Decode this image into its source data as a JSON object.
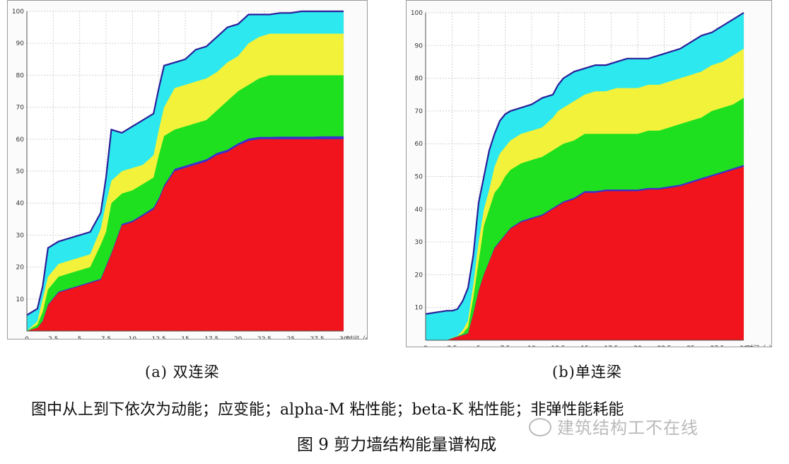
{
  "colors": {
    "kinetic": "#2de8ee",
    "strain": "#f2f23a",
    "alphaM": "#1fe01f",
    "betaK": "#3a2fd0",
    "inelastic": "#f2141c",
    "outline": "#2a1f9a",
    "grid": "#d0d0d0",
    "axis": "#505050"
  },
  "chart_data": [
    {
      "type": "area",
      "stacked": true,
      "caption": "(a)  双连梁",
      "xlabel": "时间（s）",
      "xlim": [
        0,
        30
      ],
      "ylim": [
        0,
        100
      ],
      "xticks": [
        "0",
        "2.5",
        "5",
        "7.5",
        "10",
        "12.5",
        "15",
        "17.5",
        "20",
        "22.5",
        "25",
        "27.5",
        "30"
      ],
      "yticks": [
        "10",
        "20",
        "30",
        "40",
        "50",
        "60",
        "70",
        "80",
        "90",
        "100"
      ],
      "x": [
        0,
        1,
        1.5,
        2,
        3,
        4,
        5,
        6,
        7,
        7.5,
        8,
        9,
        10,
        11,
        12,
        12.5,
        13,
        14,
        15,
        16,
        17,
        18,
        19,
        20,
        21,
        22,
        23,
        24,
        25,
        26,
        27,
        28,
        29,
        30
      ],
      "series_order": [
        "非弹性能耗能",
        "beta-K 粘性能",
        "alpha-M 粘性能",
        "应变能",
        "动能"
      ],
      "cumulative": [
        [
          0,
          1,
          3,
          8,
          12,
          13,
          14,
          15,
          16,
          20,
          24,
          33,
          34,
          36,
          38,
          41,
          45,
          50,
          51,
          52,
          53,
          55,
          56,
          58,
          59.5,
          60,
          60,
          60,
          60,
          60,
          60,
          60,
          60,
          60
        ],
        [
          0,
          1,
          3.2,
          8.3,
          12.3,
          13.3,
          14.3,
          15.3,
          16.3,
          20.4,
          24.4,
          33.5,
          34.5,
          36.5,
          38.6,
          41.6,
          45.6,
          50.7,
          51.7,
          52.7,
          53.7,
          55.7,
          56.7,
          58.7,
          60.2,
          60.7,
          60.7,
          60.8,
          60.8,
          60.8,
          60.8,
          60.9,
          60.9,
          60.9
        ],
        [
          0,
          2,
          6,
          13,
          17,
          18,
          19,
          20,
          27,
          31,
          40,
          43,
          44,
          46,
          48,
          55,
          61,
          63,
          64,
          65,
          66,
          69,
          72,
          75,
          77,
          79,
          80,
          80,
          80,
          80,
          80,
          80,
          80,
          80
        ],
        [
          0,
          3,
          10,
          17,
          21,
          22,
          23,
          24,
          32,
          40,
          47,
          50,
          51,
          52,
          55,
          63,
          70,
          76,
          77,
          78,
          79,
          81,
          84,
          86,
          90,
          92,
          93,
          93,
          93,
          93,
          93,
          93,
          93,
          93
        ],
        [
          5,
          7,
          14,
          26,
          28,
          29,
          30,
          31,
          37,
          48,
          63,
          62,
          64,
          66,
          68,
          76,
          83,
          84,
          85,
          88,
          89,
          92,
          95,
          96,
          99,
          99,
          99,
          99.5,
          99.5,
          100,
          100,
          100,
          100,
          100
        ]
      ]
    },
    {
      "type": "area",
      "stacked": true,
      "caption": "(b)单连梁",
      "xlabel": "时间（s）",
      "xlim": [
        0,
        30
      ],
      "ylim": [
        0,
        100
      ],
      "xticks": [
        "0",
        "2.5",
        "5",
        "7.5",
        "10",
        "12.5",
        "15",
        "17.5",
        "20",
        "22.5",
        "25",
        "27.5",
        "30"
      ],
      "yticks": [
        "10",
        "20",
        "30",
        "40",
        "50",
        "60",
        "70",
        "80",
        "90",
        "100"
      ],
      "x": [
        0,
        1,
        2,
        2.5,
        3,
        3.5,
        4,
        4.5,
        5,
        5.5,
        6,
        6.5,
        7,
        7.5,
        8,
        9,
        10,
        11,
        12,
        12.5,
        13,
        14,
        15,
        16,
        17,
        18,
        19,
        20,
        21,
        22,
        23,
        24,
        25,
        26,
        27,
        28,
        29,
        30
      ],
      "series_order": [
        "非弹性能耗能",
        "beta-K 粘性能",
        "alpha-M 粘性能",
        "应变能",
        "动能"
      ],
      "cumulative": [
        [
          0,
          0,
          0,
          0.5,
          1,
          1.5,
          2,
          8,
          15,
          20,
          24,
          28,
          30,
          32,
          34,
          36,
          37,
          38,
          40,
          41,
          42,
          43,
          45,
          45,
          45.5,
          45.5,
          45.5,
          45.5,
          46,
          46,
          46.5,
          47,
          48,
          49,
          50,
          51,
          52,
          53
        ],
        [
          0,
          0,
          0,
          0.6,
          1.1,
          1.6,
          2.1,
          8.2,
          15.2,
          20.2,
          24.2,
          28.3,
          30.3,
          32.3,
          34.3,
          36.4,
          37.4,
          38.4,
          40.4,
          41.4,
          42.4,
          43.5,
          45.5,
          45.5,
          46,
          46,
          46,
          46,
          46.5,
          46.5,
          47,
          47.5,
          48.5,
          49.5,
          50.5,
          51.5,
          52.5,
          53.5
        ],
        [
          0,
          0,
          0,
          0.7,
          1.2,
          2,
          4,
          13,
          24,
          35,
          40,
          45,
          47,
          50,
          52,
          54,
          55,
          56,
          58,
          59,
          60,
          61,
          63,
          63,
          63,
          63,
          63,
          63,
          64,
          64,
          65,
          66,
          67,
          68,
          70,
          71,
          72,
          74
        ],
        [
          0,
          0,
          0,
          0.8,
          1.3,
          3,
          6,
          17,
          30,
          40,
          46,
          53,
          57,
          59,
          61,
          63,
          64,
          65,
          68,
          70,
          71,
          73,
          75,
          76,
          76,
          77,
          77,
          77,
          78,
          78,
          79,
          80,
          81,
          82,
          84,
          85,
          87,
          89
        ],
        [
          8,
          8.5,
          9,
          9,
          9.5,
          12,
          16,
          26,
          42,
          50,
          58,
          63,
          67,
          69,
          70,
          71,
          72,
          74,
          75,
          78,
          80,
          82,
          83,
          84,
          84,
          85,
          86,
          86,
          86,
          87,
          88,
          89,
          91,
          93,
          94,
          96,
          98,
          100
        ]
      ]
    }
  ],
  "legend_note": "图中从上到下依次为动能；应变能；alpha-M 粘性能；beta-K 粘性能；非弹性能耗能",
  "figure_title": "图 9 剪力墙结构能量谱构成",
  "watermark": "建筑结构工不在线"
}
